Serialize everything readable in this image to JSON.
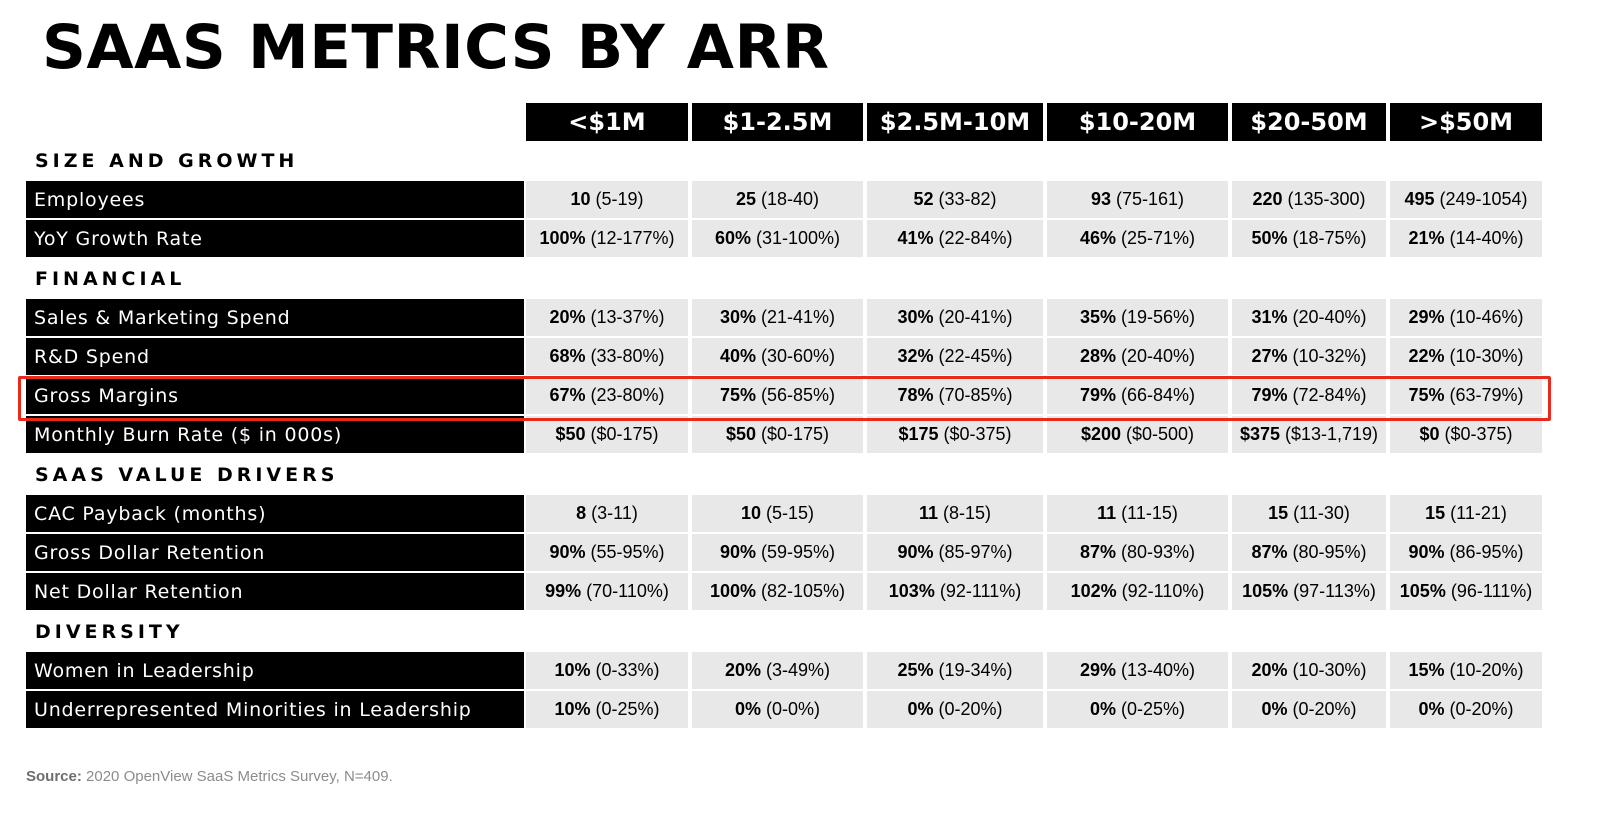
{
  "title": "SAAS METRICS BY ARR",
  "columns": [
    "<$1M",
    "$1-2.5M",
    "$2.5M-10M",
    "$10-20M",
    "$20-50M",
    ">$50M"
  ],
  "sections": [
    {
      "name": "SIZE AND GROWTH",
      "rows": [
        {
          "label": "Employees",
          "cells": [
            [
              "10",
              "(5-19)"
            ],
            [
              "25",
              "(18-40)"
            ],
            [
              "52",
              "(33-82)"
            ],
            [
              "93",
              "(75-161)"
            ],
            [
              "220",
              "(135-300)"
            ],
            [
              "495",
              "(249-1054)"
            ]
          ]
        },
        {
          "label": "YoY Growth Rate",
          "cells": [
            [
              "100%",
              "(12-177%)"
            ],
            [
              "60%",
              "(31-100%)"
            ],
            [
              "41%",
              "(22-84%)"
            ],
            [
              "46%",
              "(25-71%)"
            ],
            [
              "50%",
              "(18-75%)"
            ],
            [
              "21%",
              "(14-40%)"
            ]
          ]
        }
      ]
    },
    {
      "name": "FINANCIAL",
      "rows": [
        {
          "label": "Sales & Marketing Spend",
          "cells": [
            [
              "20%",
              "(13-37%)"
            ],
            [
              "30%",
              "(21-41%)"
            ],
            [
              "30%",
              "(20-41%)"
            ],
            [
              "35%",
              "(19-56%)"
            ],
            [
              "31%",
              "(20-40%)"
            ],
            [
              "29%",
              "(10-46%)"
            ]
          ]
        },
        {
          "label": "R&D Spend",
          "cells": [
            [
              "68%",
              "(33-80%)"
            ],
            [
              "40%",
              "(30-60%)"
            ],
            [
              "32%",
              "(22-45%)"
            ],
            [
              "28%",
              "(20-40%)"
            ],
            [
              "27%",
              "(10-32%)"
            ],
            [
              "22%",
              "(10-30%)"
            ]
          ]
        },
        {
          "label": "Gross Margins",
          "highlight": true,
          "cells": [
            [
              "67%",
              "(23-80%)"
            ],
            [
              "75%",
              "(56-85%)"
            ],
            [
              "78%",
              "(70-85%)"
            ],
            [
              "79%",
              "(66-84%)"
            ],
            [
              "79%",
              "(72-84%)"
            ],
            [
              "75%",
              "(63-79%)"
            ]
          ]
        },
        {
          "label": "Monthly Burn Rate ($ in 000s)",
          "cells": [
            [
              "$50",
              "($0-175)"
            ],
            [
              "$50",
              "($0-175)"
            ],
            [
              "$175",
              "($0-375)"
            ],
            [
              "$200",
              "($0-500)"
            ],
            [
              "$375",
              "($13-1,719)"
            ],
            [
              "$0",
              "($0-375)"
            ]
          ]
        }
      ]
    },
    {
      "name": "SAAS VALUE DRIVERS",
      "rows": [
        {
          "label": "CAC Payback (months)",
          "cells": [
            [
              "8",
              "(3-11)"
            ],
            [
              "10",
              "(5-15)"
            ],
            [
              "11",
              "(8-15)"
            ],
            [
              "11",
              "(11-15)"
            ],
            [
              "15",
              "(11-30)"
            ],
            [
              "15",
              "(11-21)"
            ]
          ]
        },
        {
          "label": "Gross Dollar Retention",
          "cells": [
            [
              "90%",
              "(55-95%)"
            ],
            [
              "90%",
              "(59-95%)"
            ],
            [
              "90%",
              "(85-97%)"
            ],
            [
              "87%",
              "(80-93%)"
            ],
            [
              "87%",
              "(80-95%)"
            ],
            [
              "90%",
              "(86-95%)"
            ]
          ]
        },
        {
          "label": "Net Dollar Retention",
          "cells": [
            [
              "99%",
              "(70-110%)"
            ],
            [
              "100%",
              "(82-105%)"
            ],
            [
              "103%",
              "(92-111%)"
            ],
            [
              "102%",
              "(92-110%)"
            ],
            [
              "105%",
              "(97-113%)"
            ],
            [
              "105%",
              "(96-111%)"
            ]
          ]
        }
      ]
    },
    {
      "name": "DIVERSITY",
      "rows": [
        {
          "label": "Women in Leadership",
          "cells": [
            [
              "10%",
              "(0-33%)"
            ],
            [
              "20%",
              "(3-49%)"
            ],
            [
              "25%",
              "(19-34%)"
            ],
            [
              "29%",
              "(13-40%)"
            ],
            [
              "20%",
              "(10-30%)"
            ],
            [
              "15%",
              "(10-20%)"
            ]
          ]
        },
        {
          "label": "Underrepresented Minorities in Leadership",
          "cells": [
            [
              "10%",
              "(0-25%)"
            ],
            [
              "0%",
              "(0-0%)"
            ],
            [
              "0%",
              "(0-20%)"
            ],
            [
              "0%",
              "(0-25%)"
            ],
            [
              "0%",
              "(0-20%)"
            ],
            [
              "0%",
              "(0-20%)"
            ]
          ]
        }
      ]
    }
  ],
  "source": {
    "label": "Source:",
    "text": "2020 OpenView SaaS Metrics Survey, N=409."
  },
  "colors": {
    "header_bg": "#000000",
    "cell_bg": "#e8e8e8",
    "highlight": "#e8291c",
    "source_text": "#8c8c8c"
  }
}
